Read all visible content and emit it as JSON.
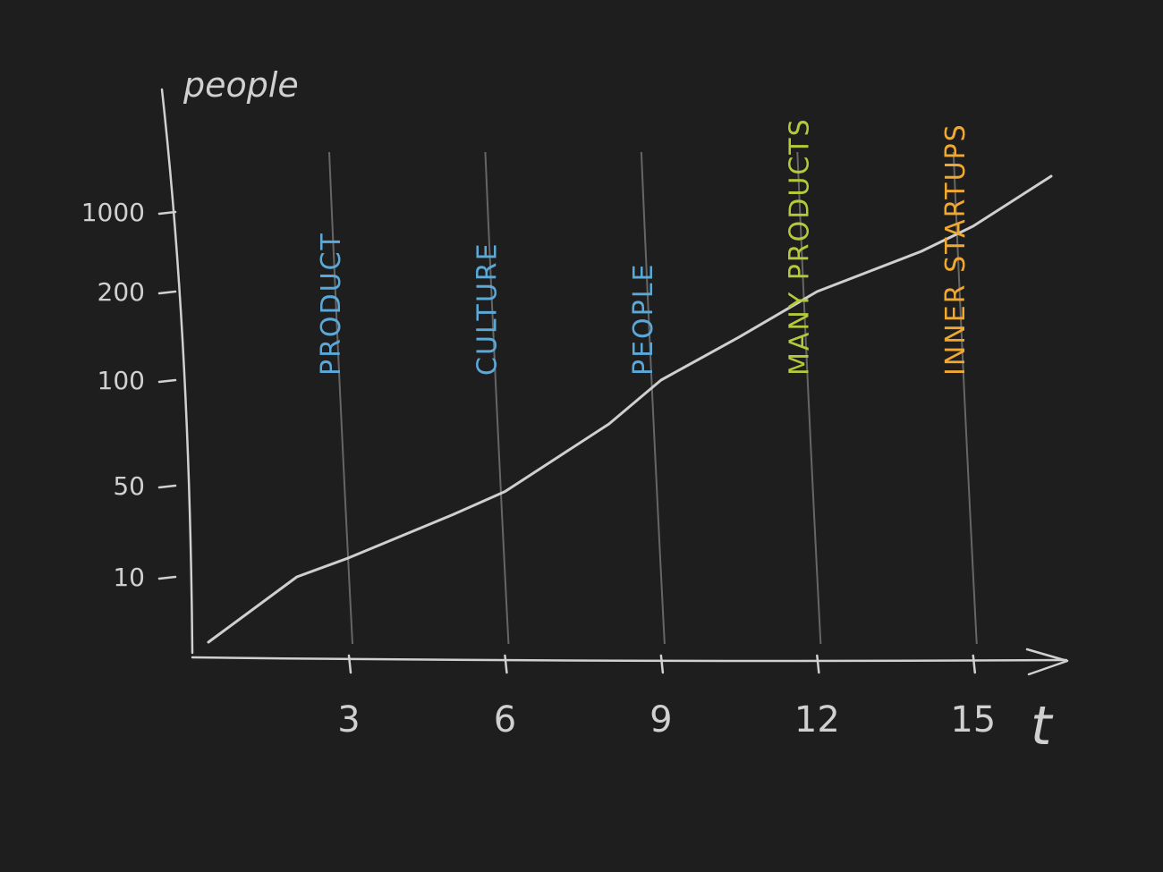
{
  "chart_data": {
    "type": "line",
    "ylabel": "people",
    "xlabel": "t",
    "x_ticks": [
      "3",
      "6",
      "9",
      "12",
      "15"
    ],
    "y_ticks": [
      "10",
      "50",
      "100",
      "200",
      "1000"
    ],
    "series": [
      {
        "x": [
          0.3,
          2,
          3,
          5,
          6,
          8,
          9,
          10.5,
          12,
          14,
          15,
          16.5
        ],
        "y": [
          5,
          10,
          14,
          30,
          45,
          75,
          100,
          140,
          200,
          450,
          750,
          1400
        ]
      }
    ],
    "annotations": [
      {
        "x": 3,
        "label": "PRODUCT",
        "color": "#5aa9d8"
      },
      {
        "x": 6,
        "label": "CULTURE",
        "color": "#5aa9d8"
      },
      {
        "x": 9,
        "label": "PEOPLE",
        "color": "#5aa9d8"
      },
      {
        "x": 12,
        "label": "MANY PRODUCTS",
        "color": "#b5c93a"
      },
      {
        "x": 15,
        "label": "INNER STARTUPS",
        "color": "#f0a830"
      }
    ],
    "axis_color": "#d0d0d0",
    "line_color": "#cfcfcf",
    "background": "#1e1e1e"
  }
}
